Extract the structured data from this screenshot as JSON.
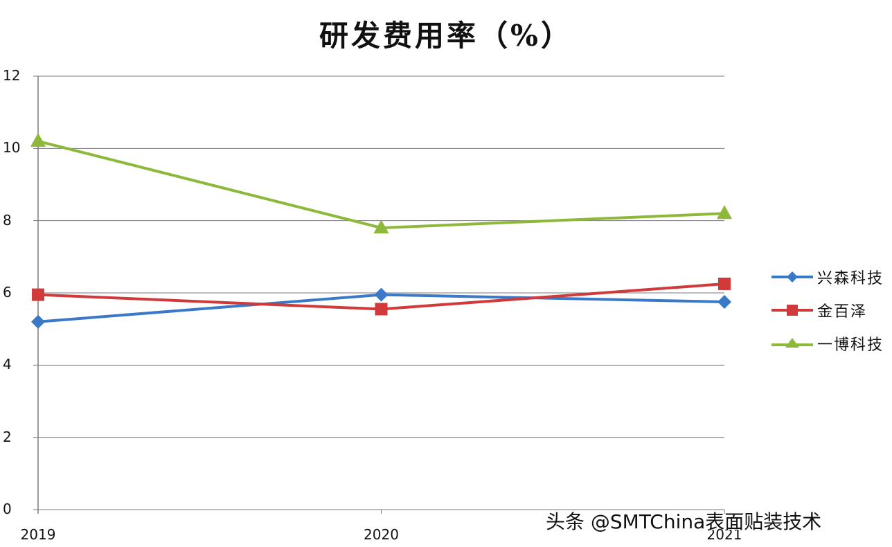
{
  "chart_data": {
    "type": "line",
    "title": "研发费用率（%）",
    "xlabel": "",
    "ylabel": "",
    "categories": [
      "2019",
      "2020",
      "2021"
    ],
    "ylim": [
      0,
      12
    ],
    "yticks": [
      "0",
      "2",
      "4",
      "6",
      "8",
      "10",
      "12"
    ],
    "grid": true,
    "legend_position": "right",
    "series": [
      {
        "name": "兴森科技",
        "color": "#3a78c8",
        "marker": "diamond",
        "values": [
          5.2,
          5.95,
          5.75
        ]
      },
      {
        "name": "金百泽",
        "color": "#d03a3a",
        "marker": "square",
        "values": [
          5.95,
          5.55,
          6.25
        ]
      },
      {
        "name": "一博科技",
        "color": "#8db83a",
        "marker": "triangle",
        "values": [
          10.2,
          7.8,
          8.2
        ]
      }
    ]
  },
  "watermark": "头条 @SMTChina表面贴装技术"
}
